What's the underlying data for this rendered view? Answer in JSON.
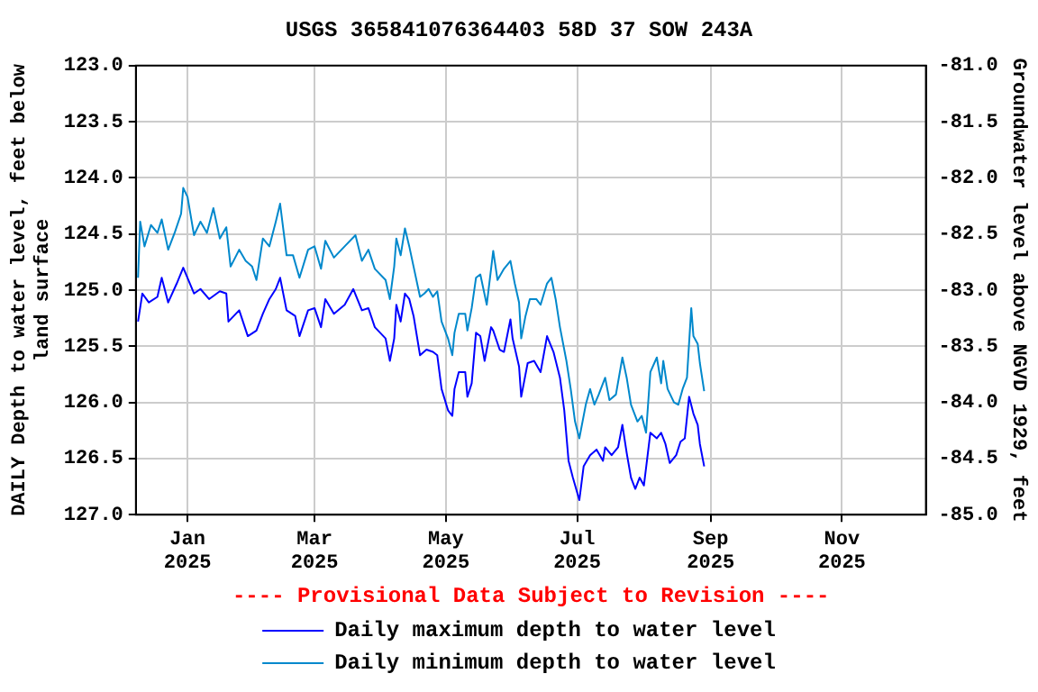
{
  "chart_data": {
    "type": "line",
    "title": "USGS 365841076364403 58D 37 SOW 243A",
    "ylabel": "DAILY Depth to water level, feet below land surface",
    "y2label": "Groundwater level above NGVD 1929, feet",
    "annotations": [
      "---- Provisional Data Subject to Revision ----"
    ],
    "xlim": [
      "2024-12-08",
      "2025-12-10"
    ],
    "xticks": [
      {
        "value": "2025-01-01",
        "label": "Jan 2025"
      },
      {
        "value": "2025-03-01",
        "label": "Mar 2025"
      },
      {
        "value": "2025-05-01",
        "label": "May 2025"
      },
      {
        "value": "2025-07-01",
        "label": "Jul 2025"
      },
      {
        "value": "2025-09-01",
        "label": "Sep 2025"
      },
      {
        "value": "2025-11-01",
        "label": "Nov 2025"
      }
    ],
    "ylim": [
      127,
      123
    ],
    "yticks": [
      {
        "value": 123,
        "label": "123.0"
      },
      123.5,
      {
        "value": 124,
        "label": "124.0"
      },
      124.5,
      {
        "value": 125,
        "label": "125.0"
      },
      125.5,
      {
        "value": 126,
        "label": "126.0"
      },
      126.5,
      {
        "value": 127,
        "label": "127.0"
      }
    ],
    "y2lim": [
      -85,
      -81
    ],
    "y2ticks": [
      {
        "value": -81,
        "label": "-81.0"
      },
      -81.5,
      {
        "value": -82,
        "label": "-82.0"
      },
      -82.5,
      {
        "value": -83,
        "label": "-83.0"
      },
      -83.5,
      {
        "value": -84,
        "label": "-84.0"
      },
      -84.5,
      {
        "value": -85,
        "label": "-85.0"
      }
    ],
    "grid": true,
    "legend": "bottom",
    "marker": "none",
    "line_style": "solid",
    "series": [
      {
        "name": "Daily maximum depth to water level",
        "color": "#0000ff",
        "x": [
          "2024-12-09",
          "2024-12-11",
          "2024-12-14",
          "2024-12-18",
          "2024-12-20",
          "2024-12-23",
          "2024-12-27",
          "2024-12-30",
          "2025-01-04",
          "2025-01-07",
          "2025-01-11",
          "2025-01-16",
          "2025-01-19",
          "2025-01-20",
          "2025-01-25",
          "2025-01-29",
          "2025-02-02",
          "2025-02-05",
          "2025-02-08",
          "2025-02-11",
          "2025-02-13",
          "2025-02-16",
          "2025-02-20",
          "2025-02-22",
          "2025-02-26",
          "2025-03-01",
          "2025-03-04",
          "2025-03-06",
          "2025-03-10",
          "2025-03-15",
          "2025-03-19",
          "2025-03-23",
          "2025-03-26",
          "2025-03-29",
          "2025-04-03",
          "2025-04-05",
          "2025-04-07",
          "2025-04-08",
          "2025-04-10",
          "2025-04-12",
          "2025-04-14",
          "2025-04-16",
          "2025-04-19",
          "2025-04-22",
          "2025-04-25",
          "2025-04-27",
          "2025-04-29",
          "2025-05-02",
          "2025-05-04",
          "2025-05-05",
          "2025-05-07",
          "2025-05-10",
          "2025-05-11",
          "2025-05-13",
          "2025-05-15",
          "2025-05-17",
          "2025-05-19",
          "2025-05-22",
          "2025-05-23",
          "2025-05-26",
          "2025-05-28",
          "2025-05-31",
          "2025-06-01",
          "2025-06-04",
          "2025-06-05",
          "2025-06-08",
          "2025-06-11",
          "2025-06-14",
          "2025-06-17",
          "2025-06-20",
          "2025-06-23",
          "2025-06-25",
          "2025-06-27",
          "2025-06-29",
          "2025-07-02",
          "2025-07-04",
          "2025-07-07",
          "2025-07-10",
          "2025-07-13",
          "2025-07-14",
          "2025-07-17",
          "2025-07-20",
          "2025-07-22",
          "2025-07-24",
          "2025-07-26",
          "2025-07-28",
          "2025-07-30",
          "2025-08-01",
          "2025-08-04",
          "2025-08-07",
          "2025-08-09",
          "2025-08-11",
          "2025-08-13",
          "2025-08-16",
          "2025-08-18",
          "2025-08-20",
          "2025-08-22",
          "2025-08-24",
          "2025-08-26",
          "2025-08-27",
          "2025-08-29"
        ],
        "values": [
          125.28,
          125.03,
          125.11,
          125.06,
          124.89,
          125.11,
          124.94,
          124.8,
          125.03,
          124.99,
          125.08,
          125.01,
          125.03,
          125.28,
          125.18,
          125.41,
          125.36,
          125.21,
          125.08,
          124.99,
          124.89,
          125.18,
          125.23,
          125.41,
          125.18,
          125.16,
          125.33,
          125.08,
          125.21,
          125.13,
          124.99,
          125.18,
          125.16,
          125.33,
          125.43,
          125.63,
          125.43,
          125.13,
          125.28,
          125.03,
          125.08,
          125.23,
          125.58,
          125.53,
          125.55,
          125.58,
          125.88,
          126.07,
          126.12,
          125.88,
          125.73,
          125.73,
          125.95,
          125.83,
          125.38,
          125.41,
          125.63,
          125.33,
          125.36,
          125.53,
          125.55,
          125.26,
          125.43,
          125.68,
          125.95,
          125.65,
          125.63,
          125.73,
          125.41,
          125.55,
          125.78,
          126.07,
          126.52,
          126.67,
          126.87,
          126.57,
          126.47,
          126.42,
          126.52,
          126.4,
          126.47,
          126.4,
          126.2,
          126.45,
          126.67,
          126.77,
          126.67,
          126.74,
          126.27,
          126.32,
          126.27,
          126.37,
          126.54,
          126.47,
          126.35,
          126.32,
          125.95,
          126.1,
          126.2,
          126.37,
          126.57
        ]
      },
      {
        "name": "Daily minimum depth to water level",
        "color": "#0088cc",
        "x": [
          "2024-12-09",
          "2024-12-10",
          "2024-12-12",
          "2024-12-15",
          "2024-12-18",
          "2024-12-20",
          "2024-12-23",
          "2024-12-26",
          "2024-12-29",
          "2024-12-30",
          "2025-01-01",
          "2025-01-04",
          "2025-01-07",
          "2025-01-10",
          "2025-01-13",
          "2025-01-16",
          "2025-01-19",
          "2025-01-21",
          "2025-01-25",
          "2025-01-28",
          "2025-01-31",
          "2025-02-02",
          "2025-02-05",
          "2025-02-08",
          "2025-02-11",
          "2025-02-13",
          "2025-02-16",
          "2025-02-19",
          "2025-02-22",
          "2025-02-26",
          "2025-03-01",
          "2025-03-04",
          "2025-03-06",
          "2025-03-10",
          "2025-03-15",
          "2025-03-20",
          "2025-03-23",
          "2025-03-26",
          "2025-03-29",
          "2025-04-03",
          "2025-04-05",
          "2025-04-07",
          "2025-04-08",
          "2025-04-10",
          "2025-04-12",
          "2025-04-14",
          "2025-04-16",
          "2025-04-19",
          "2025-04-21",
          "2025-04-23",
          "2025-04-25",
          "2025-04-27",
          "2025-04-29",
          "2025-05-02",
          "2025-05-04",
          "2025-05-05",
          "2025-05-07",
          "2025-05-10",
          "2025-05-11",
          "2025-05-13",
          "2025-05-15",
          "2025-05-17",
          "2025-05-20",
          "2025-05-22",
          "2025-05-23",
          "2025-05-25",
          "2025-05-28",
          "2025-05-31",
          "2025-06-02",
          "2025-06-04",
          "2025-06-05",
          "2025-06-07",
          "2025-06-09",
          "2025-06-12",
          "2025-06-14",
          "2025-06-17",
          "2025-06-19",
          "2025-06-21",
          "2025-06-23",
          "2025-06-26",
          "2025-06-28",
          "2025-06-30",
          "2025-07-02",
          "2025-07-05",
          "2025-07-07",
          "2025-07-09",
          "2025-07-11",
          "2025-07-14",
          "2025-07-16",
          "2025-07-19",
          "2025-07-22",
          "2025-07-24",
          "2025-07-26",
          "2025-07-29",
          "2025-07-31",
          "2025-08-02",
          "2025-08-04",
          "2025-08-07",
          "2025-08-09",
          "2025-08-10",
          "2025-08-12",
          "2025-08-15",
          "2025-08-17",
          "2025-08-19",
          "2025-08-21",
          "2025-08-23",
          "2025-08-24",
          "2025-08-26",
          "2025-08-27",
          "2025-08-29"
        ],
        "values": [
          124.89,
          124.39,
          124.61,
          124.42,
          124.49,
          124.37,
          124.64,
          124.49,
          124.32,
          124.09,
          124.17,
          124.51,
          124.39,
          124.49,
          124.27,
          124.54,
          124.44,
          124.79,
          124.64,
          124.74,
          124.79,
          124.91,
          124.54,
          124.61,
          124.39,
          124.23,
          124.69,
          124.69,
          124.89,
          124.64,
          124.61,
          124.81,
          124.56,
          124.71,
          124.61,
          124.51,
          124.74,
          124.64,
          124.81,
          124.91,
          125.08,
          124.79,
          124.54,
          124.69,
          124.45,
          124.61,
          124.79,
          125.06,
          125.03,
          124.99,
          125.06,
          125.01,
          125.28,
          125.43,
          125.58,
          125.38,
          125.21,
          125.21,
          125.36,
          125.16,
          124.89,
          124.86,
          125.13,
          124.81,
          124.65,
          124.91,
          124.81,
          124.74,
          124.94,
          125.11,
          125.43,
          125.23,
          125.08,
          125.08,
          125.13,
          124.94,
          124.89,
          125.08,
          125.33,
          125.63,
          125.88,
          126.17,
          126.32,
          126.02,
          125.88,
          126.02,
          125.93,
          125.78,
          125.98,
          125.93,
          125.6,
          125.78,
          126.02,
          126.17,
          126.12,
          126.27,
          125.73,
          125.6,
          125.83,
          125.63,
          125.88,
          126.0,
          126.02,
          125.88,
          125.78,
          125.16,
          125.41,
          125.48,
          125.65,
          125.9
        ]
      }
    ]
  }
}
